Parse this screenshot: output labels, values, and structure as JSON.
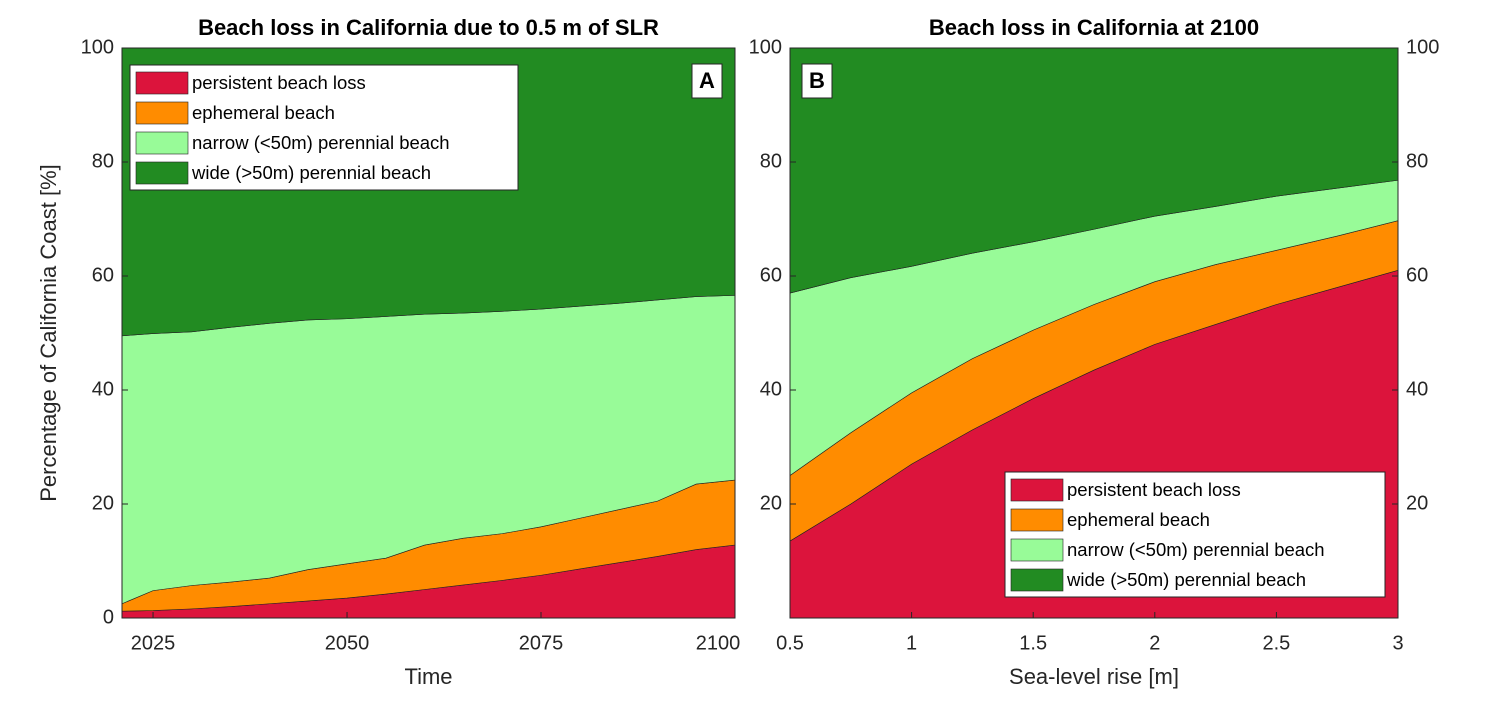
{
  "chart_data": [
    {
      "type": "area",
      "stacked": true,
      "title": "Beach loss in California due to 0.5 m of SLR",
      "x_label": "Time",
      "y_label": "Percentage of California Coast [%]",
      "annotation": "A",
      "x": [
        2021,
        2025,
        2030,
        2035,
        2040,
        2045,
        2050,
        2055,
        2060,
        2065,
        2070,
        2075,
        2080,
        2085,
        2090,
        2095,
        2100
      ],
      "xlim": [
        2021,
        2100
      ],
      "xticks": [
        2025,
        2050,
        2075,
        2100
      ],
      "ylim": [
        0,
        100
      ],
      "yticks": [
        0,
        20,
        40,
        60,
        80,
        100
      ],
      "legend": "upper left",
      "series": [
        {
          "name": "persistent beach loss",
          "color": "#dc143c",
          "values": [
            1.2,
            1.3,
            1.6,
            2.0,
            2.5,
            3.0,
            3.5,
            4.2,
            5.0,
            5.8,
            6.6,
            7.5,
            8.6,
            9.7,
            10.8,
            12.0,
            12.8
          ]
        },
        {
          "name": "ephemeral beach",
          "color": "#ff8c00",
          "values": [
            1.3,
            3.5,
            4.1,
            4.3,
            4.5,
            5.5,
            6.0,
            6.3,
            7.8,
            8.2,
            8.2,
            8.5,
            8.9,
            9.3,
            9.7,
            11.5,
            11.4
          ]
        },
        {
          "name": "narrow (<50m) perennial beach",
          "color": "#98fb98",
          "values": [
            47.0,
            45.1,
            44.5,
            44.7,
            44.7,
            43.8,
            43.0,
            42.4,
            40.5,
            39.5,
            39.0,
            38.2,
            37.2,
            36.2,
            35.3,
            32.9,
            32.4
          ]
        },
        {
          "name": "wide (>50m) perennial beach",
          "color": "#228b22",
          "values": [
            50.5,
            50.1,
            49.8,
            49.0,
            48.3,
            47.7,
            47.5,
            47.1,
            46.7,
            46.5,
            46.2,
            45.8,
            45.3,
            44.8,
            44.2,
            43.6,
            43.4
          ]
        }
      ]
    },
    {
      "type": "area",
      "stacked": true,
      "title": "Beach loss in California at 2100",
      "x_label": "Sea-level rise [m]",
      "annotation": "B",
      "x": [
        0.5,
        0.75,
        1,
        1.25,
        1.5,
        1.75,
        2,
        2.25,
        2.5,
        2.75,
        3
      ],
      "xlim": [
        0.5,
        3
      ],
      "xticks": [
        0.5,
        1,
        1.5,
        2,
        2.5,
        3
      ],
      "ylim": [
        0,
        100
      ],
      "yticks": [
        20,
        40,
        60,
        80,
        100
      ],
      "y2lim": [
        0,
        100
      ],
      "y2ticks": [
        20,
        40,
        60,
        80,
        100
      ],
      "legend": "lower right",
      "series": [
        {
          "name": "persistent beach loss",
          "color": "#dc143c",
          "values": [
            13.5,
            20,
            27,
            33,
            38.5,
            43.5,
            48,
            51.5,
            55,
            58,
            61
          ]
        },
        {
          "name": "ephemeral beach",
          "color": "#ff8c00",
          "values": [
            11.5,
            12.5,
            12.5,
            12.5,
            12,
            11.5,
            11,
            10.5,
            9.5,
            9,
            8.7
          ]
        },
        {
          "name": "narrow (<50m) perennial beach",
          "color": "#98fb98",
          "values": [
            32,
            27.2,
            22.2,
            18.5,
            15.5,
            13.2,
            11.5,
            10.2,
            9.5,
            8.4,
            7.1
          ]
        },
        {
          "name": "wide (>50m) perennial beach",
          "color": "#228b22",
          "values": [
            43,
            40.3,
            38.3,
            36,
            34,
            31.8,
            29.5,
            27.8,
            26,
            24.6,
            23.2
          ]
        }
      ]
    }
  ]
}
